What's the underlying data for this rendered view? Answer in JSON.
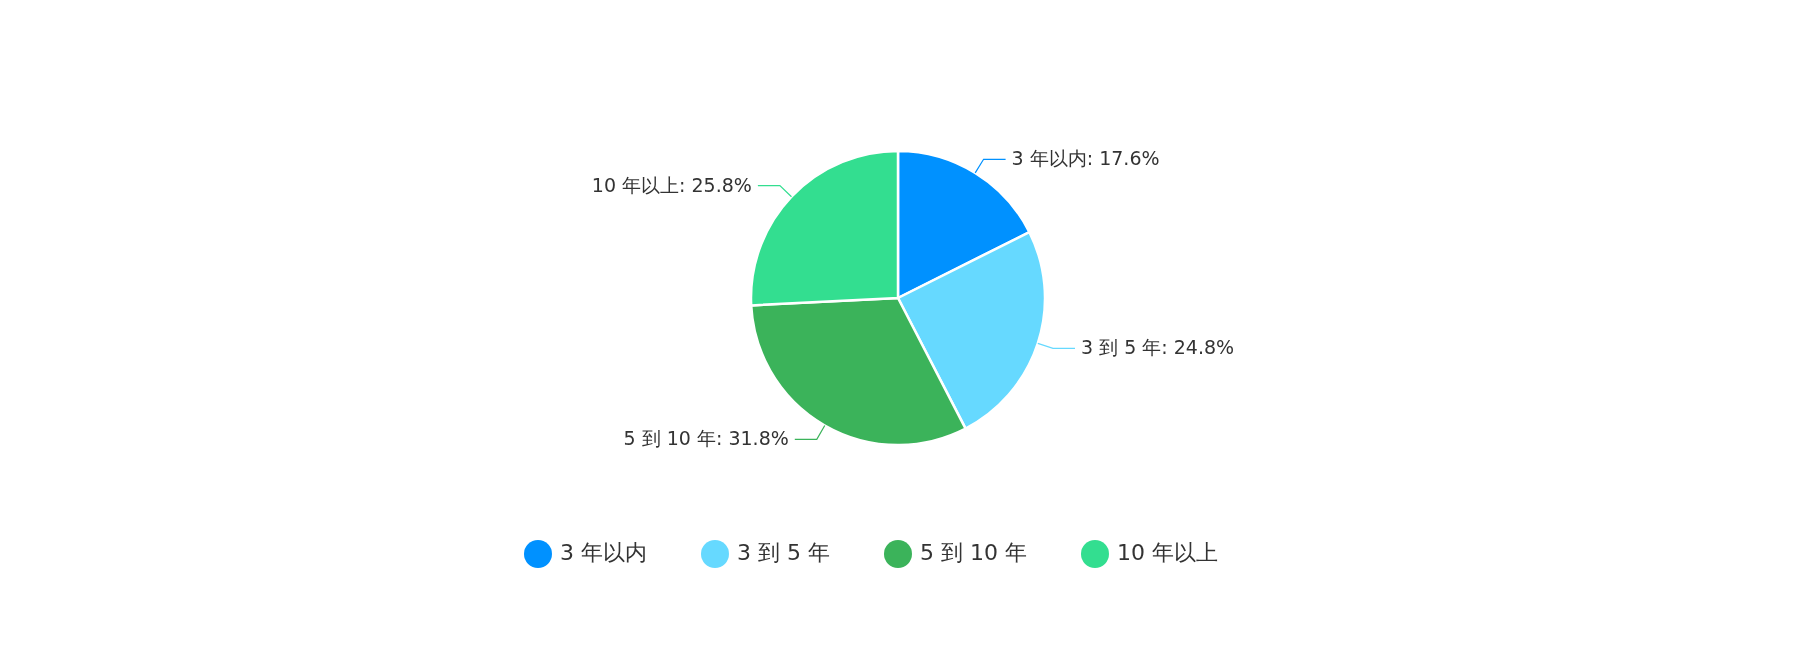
{
  "chart_data": {
    "type": "pie",
    "categories": [
      "3 年以内",
      "3 到 5 年",
      "5 到 10 年",
      "10 年以上"
    ],
    "values": [
      17.6,
      24.8,
      31.8,
      25.8
    ],
    "colors": [
      "#0091ff",
      "#66d9ff",
      "#3bb35a",
      "#33de90"
    ],
    "value_labels": [
      ": 17.6%",
      ": 24.8%",
      ": 31.8%",
      ": 25.8%"
    ],
    "legend": "bottom"
  }
}
